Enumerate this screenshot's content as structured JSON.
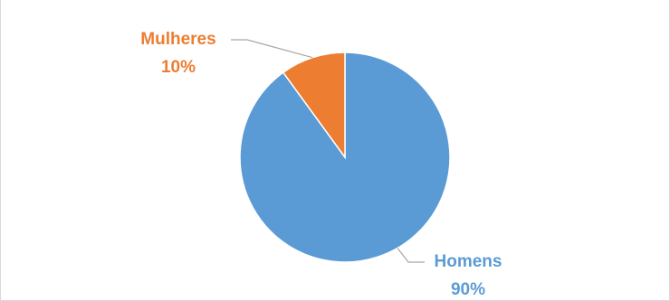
{
  "chart_data": {
    "type": "pie",
    "title": "",
    "slices": [
      {
        "label": "Mulheres",
        "value": 10,
        "value_label": "10%",
        "color": "#ED7D31"
      },
      {
        "label": "Homens",
        "value": 90,
        "value_label": "90%",
        "color": "#5B9BD5"
      }
    ],
    "legend": "none",
    "leader_line_color": "#a6a6a6"
  }
}
